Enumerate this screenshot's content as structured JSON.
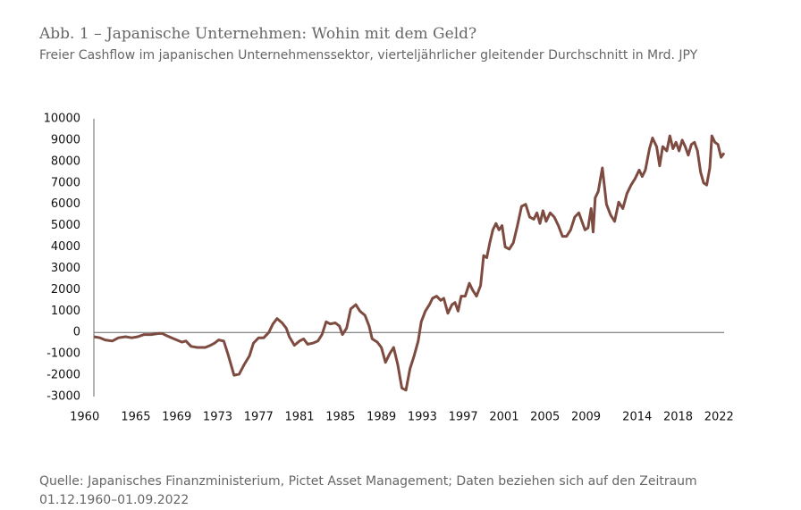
{
  "chart_data": {
    "type": "line",
    "title": "Abb. 1 – Japanische Unternehmen: Wohin mit dem Geld?",
    "subtitle": "Freier Cashflow im japanischen Unternehmenssektor, vierteljährlicher gleitender Durchschnitt in Mrd. JPY",
    "source": "Quelle: Japanisches Finanzministerium, Pictet Asset Management; Daten beziehen sich auf den Zeitraum 01.12.1960–01.09.2022",
    "x": [
      1960.9,
      1961.5,
      1962,
      1962.7,
      1963.3,
      1964,
      1964.6,
      1965.2,
      1965.8,
      1966.5,
      1967.2,
      1967.6,
      1968,
      1968.5,
      1969,
      1969.5,
      1969.9,
      1970.4,
      1971,
      1971.8,
      1972.3,
      1972.7,
      1973.1,
      1973.6,
      1974,
      1974.6,
      1975.1,
      1975.6,
      1976.1,
      1976.5,
      1977,
      1977.5,
      1978,
      1978.4,
      1978.8,
      1979.3,
      1979.7,
      1980,
      1980.5,
      1981,
      1981.4,
      1981.8,
      1982.3,
      1982.8,
      1983.2,
      1983.6,
      1984,
      1984.5,
      1984.9,
      1985.2,
      1985.6,
      1986,
      1986.5,
      1986.9,
      1987.4,
      1987.8,
      1988.1,
      1988.6,
      1989,
      1989.4,
      1989.8,
      1990.2,
      1990.6,
      1991,
      1991.4,
      1991.8,
      1992.2,
      1992.6,
      1992.9,
      1993.3,
      1993.7,
      1994,
      1994.4,
      1994.8,
      1995.1,
      1995.5,
      1995.9,
      1996.2,
      1996.5,
      1996.8,
      1997.2,
      1997.6,
      1997.9,
      1998.3,
      1998.7,
      1999,
      1999.3,
      1999.6,
      1999.9,
      2000.2,
      2000.5,
      2000.8,
      2001.1,
      2001.5,
      2001.9,
      2002.3,
      2002.7,
      2003.1,
      2003.5,
      2003.9,
      2004.2,
      2004.5,
      2004.8,
      2005.1,
      2005.5,
      2005.9,
      2006.3,
      2006.7,
      2007.1,
      2007.5,
      2007.9,
      2008.3,
      2008.6,
      2008.9,
      2009.2,
      2009.5,
      2009.7,
      2009.9,
      2010.2,
      2010.6,
      2011,
      2011.4,
      2011.8,
      2012.2,
      2012.6,
      2013,
      2013.4,
      2013.8,
      2014.2,
      2014.5,
      2014.8,
      2015.2,
      2015.5,
      2015.9,
      2016.2,
      2016.5,
      2016.9,
      2017.2,
      2017.5,
      2017.8,
      2018.1,
      2018.4,
      2018.7,
      2019,
      2019.3,
      2019.6,
      2019.9,
      2020.2,
      2020.5,
      2020.8,
      2021.1,
      2021.3,
      2021.6,
      2021.9,
      2022.2,
      2022.5
    ],
    "series": [
      {
        "color": "#7e4b40",
        "values": [
          -200,
          -250,
          -350,
          -400,
          -250,
          -200,
          -250,
          -200,
          -100,
          -100,
          -50,
          -50,
          -150,
          -250,
          -350,
          -450,
          -400,
          -650,
          -700,
          -700,
          -600,
          -500,
          -350,
          -400,
          -1000,
          -2000,
          -1950,
          -1500,
          -1100,
          -500,
          -250,
          -250,
          0,
          400,
          650,
          450,
          200,
          -200,
          -600,
          -400,
          -300,
          -550,
          -500,
          -400,
          -100,
          500,
          400,
          450,
          300,
          -100,
          200,
          1100,
          1300,
          1000,
          800,
          300,
          -300,
          -450,
          -700,
          -1400,
          -1000,
          -700,
          -1500,
          -2600,
          -2700,
          -1700,
          -1100,
          -400,
          500,
          1000,
          1300,
          1600,
          1700,
          1500,
          1600,
          900,
          1300,
          1400,
          1000,
          1700,
          1700,
          2300,
          2000,
          1700,
          2200,
          3600,
          3500,
          4200,
          4800,
          5100,
          4800,
          5000,
          4000,
          3900,
          4200,
          5000,
          5900,
          6000,
          5400,
          5300,
          5600,
          5100,
          5700,
          5200,
          5600,
          5400,
          5000,
          4500,
          4500,
          4800,
          5400,
          5600,
          5200,
          4800,
          4900,
          5800,
          4700,
          6300,
          6600,
          7700,
          6000,
          5500,
          5200,
          6100,
          5800,
          6500,
          6900,
          7200,
          7600,
          7300,
          7600,
          8600,
          9100,
          8700,
          7800,
          8700,
          8500,
          9200,
          8600,
          8900,
          8500,
          9000,
          8700,
          8300,
          8800,
          8900,
          8500,
          7500,
          7000,
          6900,
          7700,
          9200,
          8900,
          8800,
          8200,
          8400
        ]
      }
    ],
    "xlim": [
      1960.9,
      2022.5
    ],
    "xticks": [
      1960,
      1965,
      1969,
      1973,
      1977,
      1981,
      1985,
      1989,
      1993,
      1997,
      2001,
      2005,
      2009,
      2014,
      2018,
      2022
    ],
    "ylim": [
      -3000,
      10000
    ],
    "yticks": [
      -3000,
      -2000,
      -1000,
      0,
      1000,
      2000,
      3000,
      4000,
      5000,
      6000,
      7000,
      8000,
      9000,
      10000
    ]
  }
}
